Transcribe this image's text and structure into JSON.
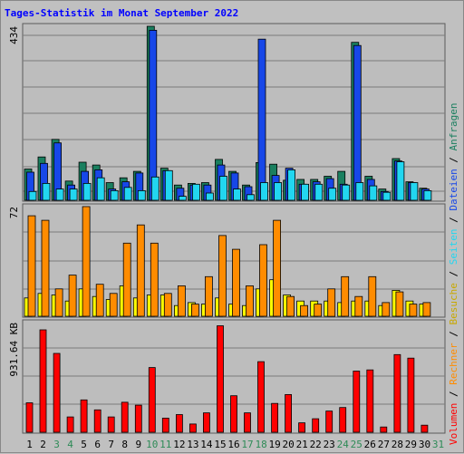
{
  "chart_data": {
    "type": "bar",
    "title": "Tages-Statistik im Monat September 2022",
    "days": [
      "1",
      "2",
      "3",
      "4",
      "5",
      "6",
      "7",
      "8",
      "9",
      "10",
      "11",
      "12",
      "13",
      "14",
      "15",
      "16",
      "17",
      "18",
      "19",
      "20",
      "21",
      "22",
      "23",
      "24",
      "25",
      "26",
      "27",
      "28",
      "29",
      "30",
      "31"
    ],
    "weekend_days": [
      "3",
      "4",
      "10",
      "11",
      "17",
      "18",
      "24",
      "25",
      "31"
    ],
    "panels": {
      "top": {
        "max_label": "434",
        "ymax": 434,
        "series": [
          {
            "name": "Anfragen",
            "color": "#1a7f5f",
            "values": [
              78,
              108,
              152,
              48,
              95,
              88,
              44,
              56,
              72,
              434,
              80,
              38,
              42,
              44,
              102,
              72,
              38,
              94,
              90,
              50,
              52,
              52,
              60,
              72,
              394,
              60,
              28,
              104,
              46,
              30,
              null
            ]
          },
          {
            "name": "Dateien",
            "color": "#1747e8",
            "values": [
              70,
              92,
              143,
              38,
              72,
              76,
              28,
              46,
              68,
              424,
              74,
              30,
              38,
              38,
              88,
              68,
              34,
              402,
              62,
              80,
              40,
              46,
              54,
              40,
              386,
              52,
              22,
              98,
              44,
              28,
              null
            ]
          },
          {
            "name": "Seiten",
            "color": "#22d6f0",
            "values": [
              22,
              42,
              28,
              28,
              42,
              56,
              24,
              32,
              24,
              58,
              74,
              10,
              40,
              18,
              60,
              28,
              14,
              44,
              44,
              76,
              40,
              40,
              30,
              38,
              44,
              36,
              20,
              96,
              44,
              24,
              null
            ]
          }
        ]
      },
      "middle": {
        "max_label": "72",
        "ymax": 72,
        "series": [
          {
            "name": "Besuche",
            "color": "#ffff00",
            "values": [
              12,
              15,
              14,
              10,
              18,
              13,
              11,
              20,
              12,
              14,
              14,
              7,
              9,
              8,
              12,
              8,
              7,
              18,
              24,
              14,
              10,
              10,
              10,
              9,
              10,
              10,
              7,
              17,
              10,
              8,
              null
            ]
          },
          {
            "name": "Rechner",
            "color": "#ff8c00",
            "values": [
              66,
              63,
              18,
              27,
              72,
              21,
              15,
              48,
              60,
              48,
              15,
              20,
              8,
              26,
              53,
              44,
              20,
              47,
              63,
              13,
              7,
              8,
              18,
              26,
              13,
              26,
              9,
              16,
              8,
              9,
              null
            ]
          }
        ]
      },
      "bottom": {
        "max_label": "931.64 KB",
        "ymax": 931.64,
        "series": [
          {
            "name": "Volumen",
            "color": "#ff0000",
            "values": [
              250,
              870,
              670,
              130,
              275,
              190,
              130,
              255,
              230,
              550,
              120,
              150,
              70,
              165,
              905,
              310,
              165,
              600,
              245,
              320,
              80,
              115,
              180,
              210,
              520,
              530,
              45,
              660,
              630,
              60,
              null
            ]
          }
        ]
      }
    },
    "legend": [
      {
        "text": "Anfragen",
        "color": "#1a7f5f"
      },
      {
        "text": "Dateien",
        "color": "#1747e8"
      },
      {
        "text": "Seiten",
        "color": "#22d6f0"
      },
      {
        "text": "Besuche",
        "color": "#c8a800"
      },
      {
        "text": "Rechner",
        "color": "#ff8c00"
      },
      {
        "text": "Volumen",
        "color": "#ff0000"
      }
    ],
    "legend_separator": " / ",
    "grid": true
  }
}
